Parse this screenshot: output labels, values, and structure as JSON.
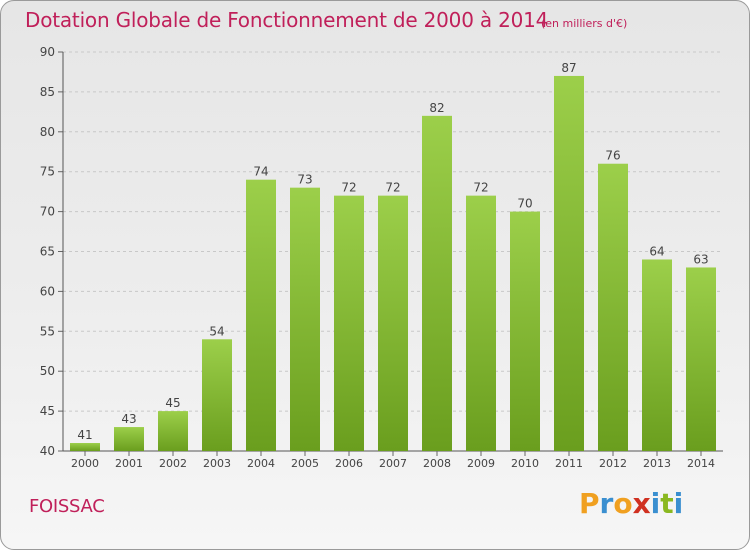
{
  "title": "Dotation Globale de Fonctionnement de 2000 à 2014",
  "subtitle": "(en milliers d'€)",
  "commune": "FOISSAC",
  "brand": {
    "letters": [
      "P",
      "r",
      "o",
      "x",
      "i",
      "t",
      "i"
    ],
    "colors": [
      "#f0a020",
      "#3a8fd0",
      "#f0a020",
      "#d03020",
      "#3a8fd0",
      "#8ab820",
      "#3a8fd0"
    ]
  },
  "colors": {
    "bar_light": "#9ccf4a",
    "bar_dark": "#6a9e1e",
    "accent": "#c0205a"
  },
  "chart_data": {
    "type": "bar",
    "categories": [
      "2000",
      "2001",
      "2002",
      "2003",
      "2004",
      "2005",
      "2006",
      "2007",
      "2008",
      "2009",
      "2010",
      "2011",
      "2012",
      "2013",
      "2014"
    ],
    "values": [
      41,
      43,
      45,
      54,
      74,
      73,
      72,
      72,
      82,
      72,
      70,
      87,
      76,
      64,
      63
    ],
    "ylim": [
      40,
      90
    ],
    "yticks": [
      40,
      45,
      50,
      55,
      60,
      65,
      70,
      75,
      80,
      85,
      90
    ],
    "grid": true,
    "data_labels": true
  }
}
